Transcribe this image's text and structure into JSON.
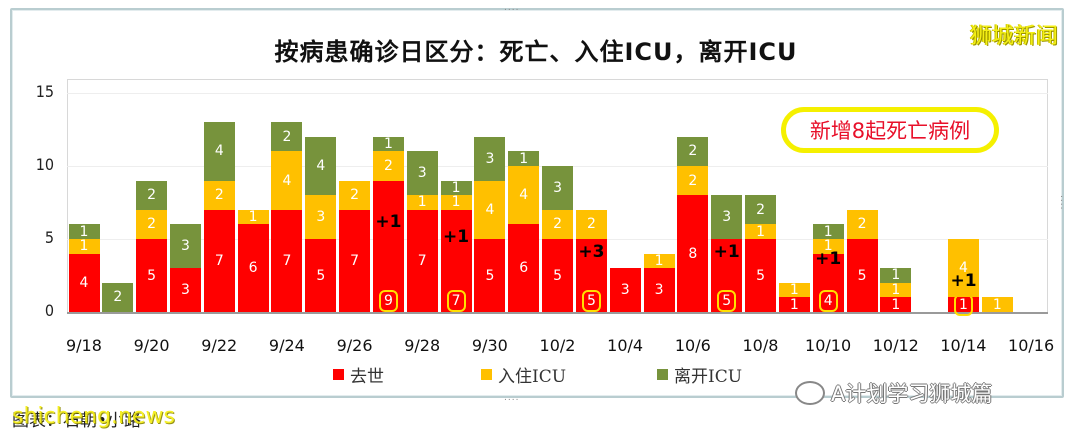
{
  "chart_data": {
    "type": "bar",
    "stacked": true,
    "title": "按病患确诊日区分：死亡、入住ICU，离开ICU",
    "xlabel": "",
    "ylabel": "",
    "ylim": [
      0,
      15
    ],
    "yticks": [
      0,
      5,
      10,
      15
    ],
    "grid": true,
    "legend_position": "bottom",
    "categories": [
      "9/18",
      "9/19",
      "9/20",
      "9/21",
      "9/22",
      "9/23",
      "9/24",
      "9/25",
      "9/26",
      "9/27",
      "9/28",
      "9/29",
      "9/30",
      "10/1",
      "10/2",
      "10/3",
      "10/4",
      "10/5",
      "10/6",
      "10/7",
      "10/8",
      "10/9",
      "10/10",
      "10/11",
      "10/12",
      "10/13",
      "10/14",
      "10/15",
      "10/16"
    ],
    "xtick_labels": [
      "9/18",
      "9/20",
      "9/22",
      "9/24",
      "9/26",
      "9/28",
      "9/30",
      "10/2",
      "10/4",
      "10/6",
      "10/8",
      "10/10",
      "10/12",
      "10/14",
      "10/16"
    ],
    "series": [
      {
        "name": "去世",
        "color": "#ff0000",
        "values": [
          4,
          0,
          5,
          3,
          7,
          6,
          7,
          5,
          7,
          9,
          7,
          7,
          5,
          6,
          5,
          5,
          3,
          3,
          8,
          5,
          5,
          1,
          4,
          5,
          1,
          0,
          1,
          0,
          0
        ]
      },
      {
        "name": "入住ICU",
        "color": "#ffc000",
        "values": [
          1,
          0,
          2,
          0,
          2,
          1,
          4,
          3,
          2,
          2,
          1,
          1,
          4,
          4,
          2,
          2,
          0,
          1,
          2,
          0,
          1,
          1,
          1,
          2,
          1,
          0,
          4,
          1,
          0
        ]
      },
      {
        "name": "离开ICU",
        "color": "#77933c",
        "values": [
          1,
          2,
          2,
          3,
          4,
          0,
          2,
          4,
          0,
          1,
          3,
          1,
          3,
          1,
          3,
          0,
          0,
          0,
          2,
          3,
          2,
          0,
          1,
          0,
          1,
          0,
          0,
          0,
          0
        ]
      }
    ],
    "annotations": [
      {
        "category": "9/27",
        "text": "+1",
        "circled_value": 9
      },
      {
        "category": "9/29",
        "text": "+1",
        "circled_value": 7
      },
      {
        "category": "10/3",
        "text": "+3",
        "circled_value": 5
      },
      {
        "category": "10/7",
        "text": "+1",
        "circled_value": 5
      },
      {
        "category": "10/10",
        "text": "+1",
        "circled_value": 4
      },
      {
        "category": "10/14",
        "text": "+1",
        "circled_value": 1
      }
    ],
    "callout": "新增8起死亡病例"
  },
  "header": {
    "title": "按病患确诊日区分：死亡、入住ICU，离开ICU",
    "brand": "狮城新闻"
  },
  "legend": [
    {
      "label": "去世",
      "color": "#ff0000"
    },
    {
      "label": "入住ICU",
      "color": "#ffc000"
    },
    {
      "label": "离开ICU",
      "color": "#77933c"
    }
  ],
  "callout": {
    "text": "新增8起死亡病例"
  },
  "footer": {
    "source_cn": "图表：石朝•小路",
    "watermark_en": "shicheng.news",
    "wechat_label": "A计划学习狮城篇"
  }
}
